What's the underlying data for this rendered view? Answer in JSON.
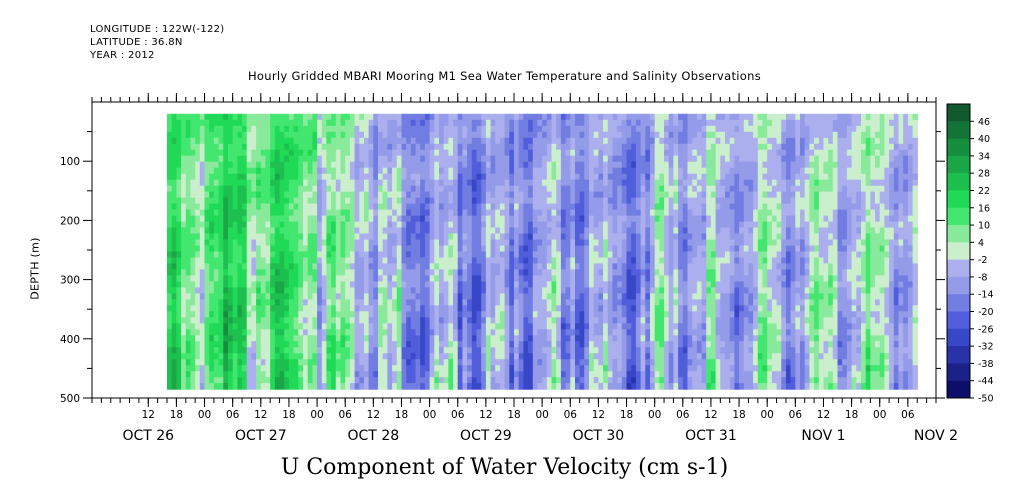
{
  "header": {
    "longitude": "LONGITUDE : 122W(-122)",
    "latitude": "LATITUDE : 36.8N",
    "year": "YEAR : 2012"
  },
  "chart_data": {
    "type": "heatmap",
    "title": "Hourly Gridded MBARI Mooring M1 Sea Water Temperature and Salinity Observations",
    "xlabel": "U Component of Water Velocity (cm s-1)",
    "ylabel": "DEPTH (m)",
    "ylim": [
      500,
      0
    ],
    "y_ticks": [
      100,
      200,
      300,
      400,
      500
    ],
    "x_hour_ticks": [
      "12",
      "18",
      "00",
      "06",
      "12",
      "18",
      "00",
      "06",
      "12",
      "18",
      "00",
      "06",
      "12",
      "18",
      "00",
      "06",
      "12",
      "18",
      "00",
      "06",
      "12",
      "18",
      "00",
      "06",
      "12",
      "18",
      "00",
      "06"
    ],
    "x_date_labels": [
      "OCT 26",
      "OCT 27",
      "OCT 28",
      "OCT 29",
      "OCT 30",
      "OCT 31",
      "NOV  1",
      "NOV  2"
    ],
    "colorbar": {
      "levels": [
        "46",
        "40",
        "34",
        "28",
        "22",
        "16",
        "10",
        "4",
        "-2",
        "-8",
        "-14",
        "-20",
        "-26",
        "-32",
        "-38",
        "-44",
        "-50"
      ],
      "min": -50,
      "max": 52,
      "step": 6
    },
    "data_extent": {
      "time_start": "2012-10-26 16:00",
      "time_end": "2012-11-02 08:00",
      "depth_top": 20,
      "depth_bottom": 485
    },
    "regime_timeline": [
      {
        "start": "2012-10-26 16:00",
        "end": "2012-10-27 00:00",
        "value": 10
      },
      {
        "start": "2012-10-27 00:00",
        "end": "2012-10-28 00:00",
        "value": 14
      },
      {
        "start": "2012-10-28 00:00",
        "end": "2012-10-28 12:00",
        "value": 2
      },
      {
        "start": "2012-10-28 12:00",
        "end": "2012-10-29 00:00",
        "value": -10
      },
      {
        "start": "2012-10-29 00:00",
        "end": "2012-10-29 18:00",
        "value": -12
      },
      {
        "start": "2012-10-29 18:00",
        "end": "2012-10-30 12:00",
        "value": -10
      },
      {
        "start": "2012-10-30 12:00",
        "end": "2012-10-31 00:00",
        "value": -12
      },
      {
        "start": "2012-10-31 00:00",
        "end": "2012-11-01 00:00",
        "value": -4
      },
      {
        "start": "2012-11-01 00:00",
        "end": "2012-11-02 08:00",
        "value": -3
      }
    ],
    "colors": {
      "positive_max": "#0f4d2a",
      "positive_mid": "#21e65a",
      "near_zero": "#d6f0d6",
      "negative_near": "#b4b8f0",
      "negative_mid": "#3f4fd8",
      "negative_max": "#05055a"
    }
  }
}
